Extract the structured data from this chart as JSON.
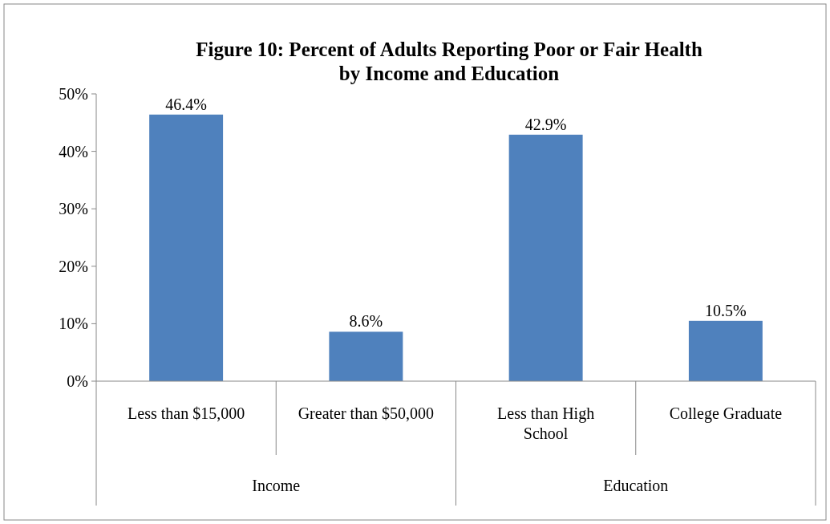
{
  "chart_data": {
    "type": "bar",
    "title": "Figure 10: Percent of Adults Reporting Poor or Fair Health\nby Income and Education",
    "categories": [
      "Less than $15,000",
      "Greater than $50,000",
      "Less than High\nSchool",
      "College Graduate"
    ],
    "values": [
      46.4,
      8.6,
      42.9,
      10.5
    ],
    "color": "#4f81bd",
    "value_labels": [
      "46.4%",
      "8.6%",
      "42.9%",
      "10.5%"
    ],
    "ylim": [
      0,
      50
    ],
    "yticks": [
      {
        "value": 0,
        "label": "0%"
      },
      {
        "value": 10,
        "label": "10%"
      },
      {
        "value": 20,
        "label": "20%"
      },
      {
        "value": 30,
        "label": "30%"
      },
      {
        "value": 40,
        "label": "40%"
      },
      {
        "value": 50,
        "label": "50%"
      }
    ],
    "annotations": [
      "Income",
      "Education"
    ]
  }
}
